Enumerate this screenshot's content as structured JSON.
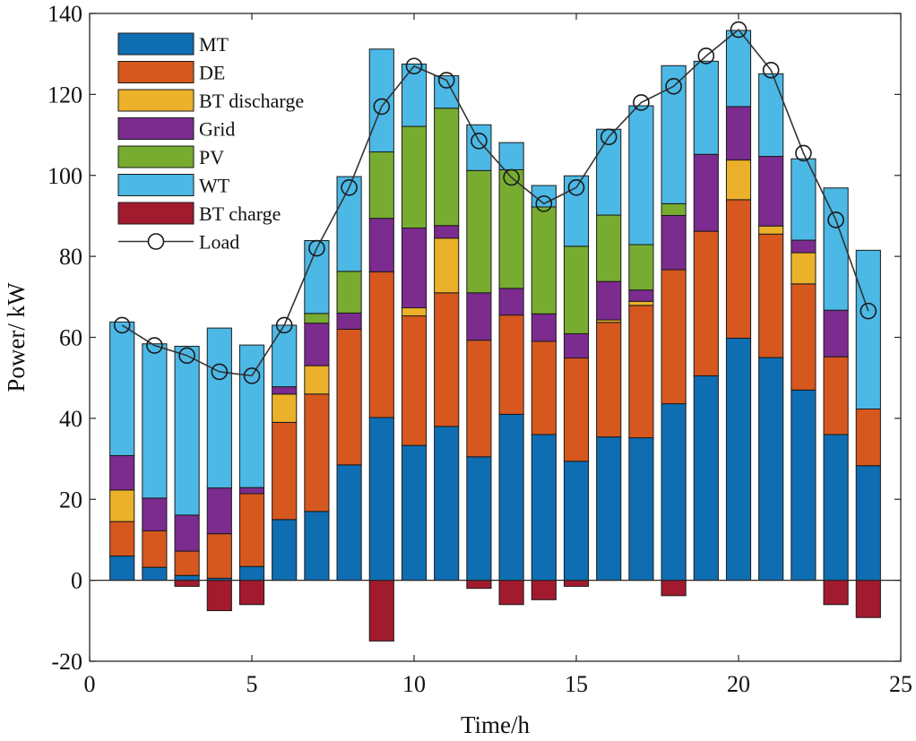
{
  "chart_data": {
    "type": "bar",
    "stacked": true,
    "title": "",
    "xlabel": "Time/h",
    "ylabel": "Power/ kW",
    "xlim": [
      0,
      25
    ],
    "ylim": [
      -20,
      140
    ],
    "xticks": [
      "0",
      "5",
      "10",
      "15",
      "20",
      "25"
    ],
    "yticks": [
      "-20",
      "0",
      "20",
      "40",
      "60",
      "80",
      "100",
      "120",
      "140"
    ],
    "legend_position": "top-left",
    "categories": [
      1,
      2,
      3,
      4,
      5,
      6,
      7,
      8,
      9,
      10,
      11,
      12,
      13,
      14,
      15,
      16,
      17,
      18,
      19,
      20,
      21,
      22,
      23,
      24
    ],
    "series": [
      {
        "name": "MT",
        "color": "#0f6db2",
        "values": [
          6,
          3.2,
          1.2,
          0.5,
          3.4,
          15,
          17,
          28.5,
          40.2,
          33.3,
          38,
          30.5,
          41,
          36,
          29.4,
          35.4,
          35.2,
          43.6,
          50.5,
          59.8,
          55,
          47,
          36,
          28.3
        ]
      },
      {
        "name": "DE",
        "color": "#d6581e",
        "values": [
          8.5,
          9,
          6,
          11,
          18,
          24,
          29,
          33.5,
          36,
          32,
          33,
          28.8,
          24.5,
          23,
          25.5,
          28.3,
          32.7,
          33.1,
          35.7,
          34.2,
          30.5,
          26.2,
          19.2,
          14
        ]
      },
      {
        "name": "BT discharge",
        "color": "#ebb12a",
        "values": [
          7.8,
          0,
          0,
          0,
          0,
          7,
          7,
          0,
          0,
          2,
          13.5,
          0,
          0,
          0,
          0,
          0.6,
          1,
          0,
          0,
          9.8,
          2,
          7.7,
          0,
          0
        ]
      },
      {
        "name": "Grid",
        "color": "#7c2b8f",
        "values": [
          8.5,
          8.1,
          8.9,
          11.3,
          1.5,
          1.8,
          10.5,
          4,
          13.2,
          19.7,
          3.1,
          11.7,
          6.6,
          6.8,
          6,
          9.5,
          2.8,
          13.4,
          19,
          13.2,
          17.2,
          3.1,
          11.5,
          0
        ]
      },
      {
        "name": "PV",
        "color": "#77ac30",
        "values": [
          0,
          0,
          0,
          0,
          0,
          0,
          2.4,
          10.3,
          16.4,
          25.1,
          29,
          30.2,
          29.3,
          26.4,
          21.6,
          16.4,
          11.2,
          2.9,
          0,
          0,
          0,
          0,
          0,
          0
        ]
      },
      {
        "name": "WT",
        "color": "#4cb8e5",
        "values": [
          33,
          38.1,
          41.7,
          39.5,
          35.2,
          15.2,
          18,
          23.4,
          25.4,
          15.4,
          8,
          11.3,
          6.7,
          5.3,
          17.4,
          21.2,
          34.3,
          34.1,
          23,
          18.8,
          20.4,
          20.1,
          30.2,
          39.2
        ]
      },
      {
        "name": "BT charge",
        "color": "#a21a2e",
        "values": [
          0,
          0,
          -1.5,
          -7.5,
          -6,
          0,
          0,
          0,
          -15,
          0,
          0,
          -2,
          -6,
          -4.8,
          -1.5,
          0,
          0,
          -3.8,
          0,
          0,
          0,
          0,
          -6,
          -9.2
        ]
      },
      {
        "name": "Load",
        "type": "line",
        "marker": "circle",
        "color": "#333333",
        "values": [
          63,
          58,
          55.5,
          51.5,
          50.5,
          63,
          82,
          97,
          117,
          127,
          123.5,
          108.5,
          99.5,
          93,
          97,
          109.5,
          118,
          122,
          129.5,
          136,
          126,
          105.5,
          89,
          66.5
        ]
      }
    ]
  }
}
